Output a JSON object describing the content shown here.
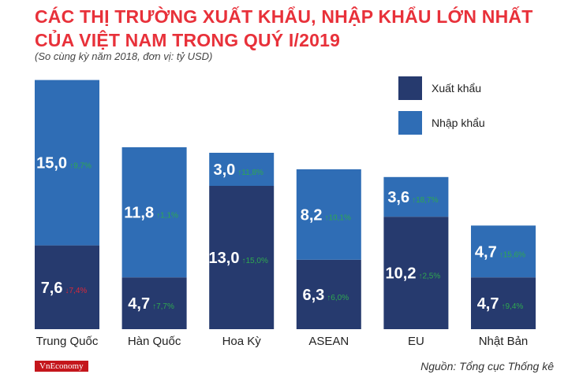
{
  "title": "CÁC THỊ TRƯỜNG XUẤT KHẨU, NHẬP KHẨU LỚN NHẤT CỦA VIỆT NAM TRONG QUÝ I/2019",
  "subtitle": "(So cùng kỳ năm 2018, đơn vị: tỷ USD)",
  "legend": {
    "export": "Xuất khẩu",
    "import": "Nhập khẩu"
  },
  "colors": {
    "export": "#263a6e",
    "import": "#2f6db5",
    "up": "#2fa84f",
    "down": "#d9283a",
    "title": "#e8313a"
  },
  "source": "Nguồn: Tổng cục Thống kê",
  "logo": "VnEconomy",
  "chart_data": {
    "type": "bar",
    "stacked": true,
    "title": "CÁC THỊ TRƯỜNG XUẤT KHẨU, NHẬP KHẨU LỚN NHẤT CỦA VIỆT NAM TRONG QUÝ I/2019",
    "subtitle": "(So cùng kỳ năm 2018, đơn vị: tỷ USD)",
    "categories": [
      "Trung Quốc",
      "Hàn Quốc",
      "Hoa Kỳ",
      "ASEAN",
      "EU",
      "Nhật Bản"
    ],
    "series": [
      {
        "name": "Xuất khẩu",
        "values": [
          7.6,
          4.7,
          13.0,
          6.3,
          10.2,
          4.7
        ],
        "labels": [
          "7,6",
          "4,7",
          "13,0",
          "6,3",
          "10,2",
          "4,7"
        ],
        "changes": [
          "7,4%",
          "7,7%",
          "15,0%",
          "6,0%",
          "2,5%",
          "9,4%"
        ],
        "directions": [
          "down",
          "up",
          "up",
          "up",
          "up",
          "up"
        ]
      },
      {
        "name": "Nhập khẩu",
        "values": [
          15.0,
          11.8,
          3.0,
          8.2,
          3.6,
          4.7
        ],
        "labels": [
          "15,0",
          "11,8",
          "3,0",
          "8,2",
          "3,6",
          "4,7"
        ],
        "changes": [
          "9,7%",
          "1,1%",
          "11,8%",
          "10,1%",
          "18,7%",
          "15,6%"
        ],
        "directions": [
          "up",
          "up",
          "up",
          "up",
          "up",
          "up"
        ]
      }
    ],
    "legend_position": "top-right",
    "grid": false
  }
}
